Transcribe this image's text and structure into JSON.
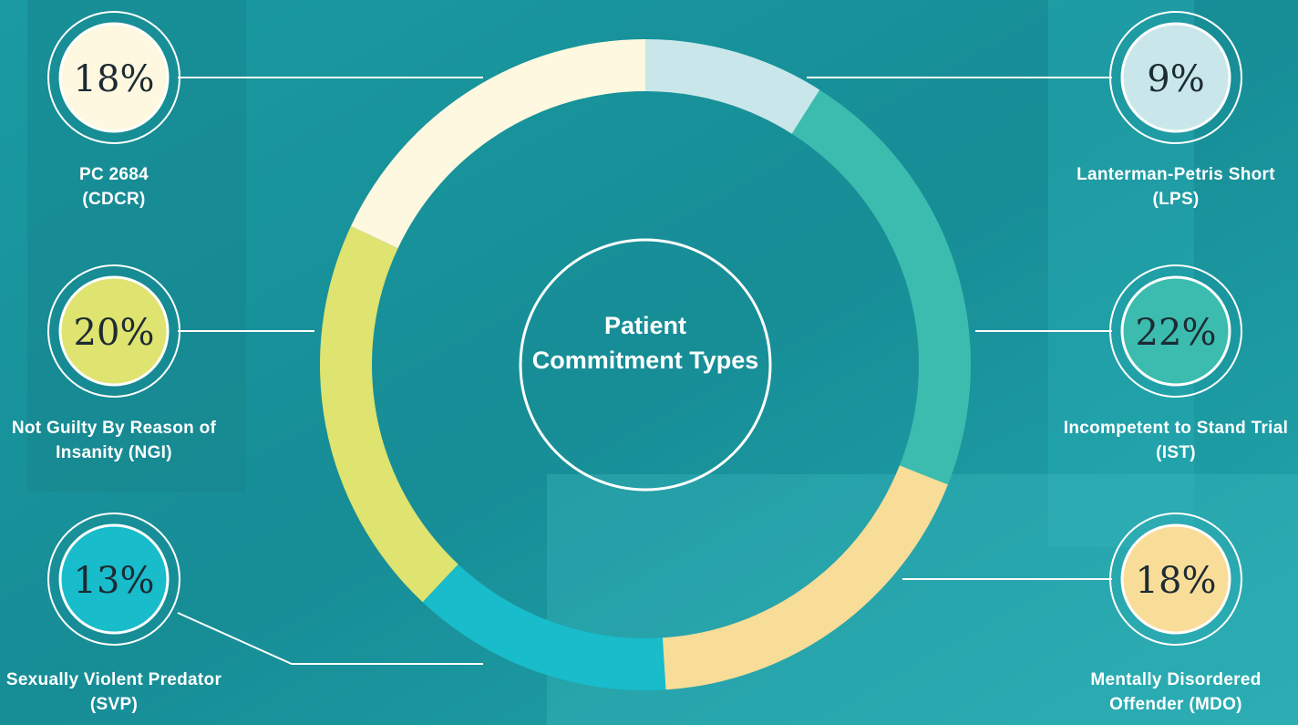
{
  "chart_data": {
    "type": "donut",
    "title": "Patient Commitment Types",
    "categories": [
      "Lanterman-Petris Short (LPS)",
      "Incompetent to Stand Trial (IST)",
      "Mentally Disordered Offender (MDO)",
      "Sexually Violent Predator (SVP)",
      "Not Guilty By Reason of Insanity (NGI)",
      "PC 2684 (CDCR)"
    ],
    "values": [
      9,
      22,
      18,
      13,
      20,
      18
    ],
    "value_labels": [
      "9%",
      "22%",
      "18%",
      "13%",
      "20%",
      "18%"
    ],
    "colors": [
      "#c9e7ea",
      "#3bbcaf",
      "#f8dd98",
      "#18bccb",
      "#dfe36f",
      "#fdf8df"
    ]
  }
}
